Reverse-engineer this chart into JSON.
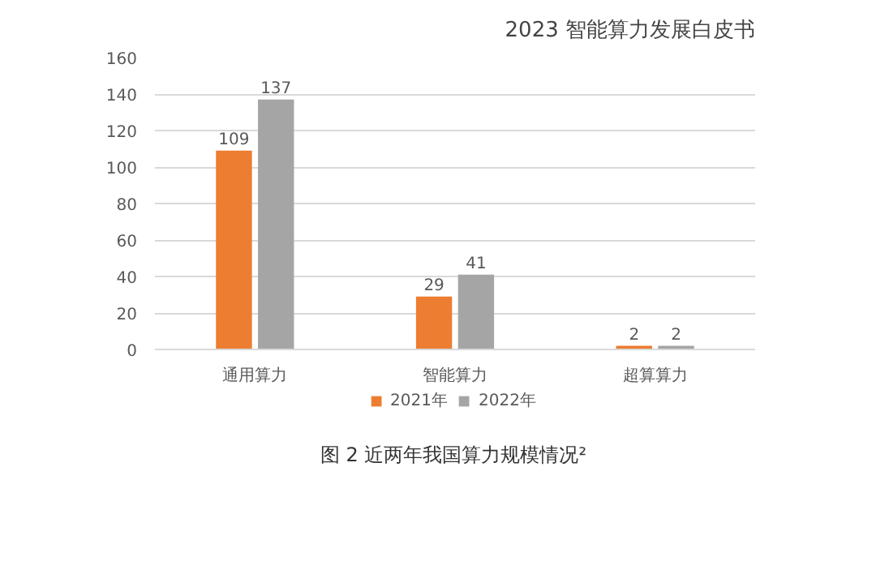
{
  "chart_data": {
    "type": "bar",
    "title": "2023 智能算力发展白皮书",
    "annotations": [
      "图 2 近两年我国算力规模情况²"
    ],
    "categories": [
      "通用算力",
      "智能算力",
      "超算算力"
    ],
    "series": [
      {
        "name": "2021年",
        "color": "#ed7d31",
        "values": [
          109,
          29,
          2
        ]
      },
      {
        "name": "2022年",
        "color": "#a5a5a5",
        "values": [
          137,
          41,
          2
        ]
      }
    ],
    "ylim": [
      0,
      160
    ],
    "yticks": [
      0,
      20,
      40,
      60,
      80,
      100,
      120,
      140,
      160
    ],
    "grid": "y",
    "legend": "bottom",
    "data_labels": true
  }
}
